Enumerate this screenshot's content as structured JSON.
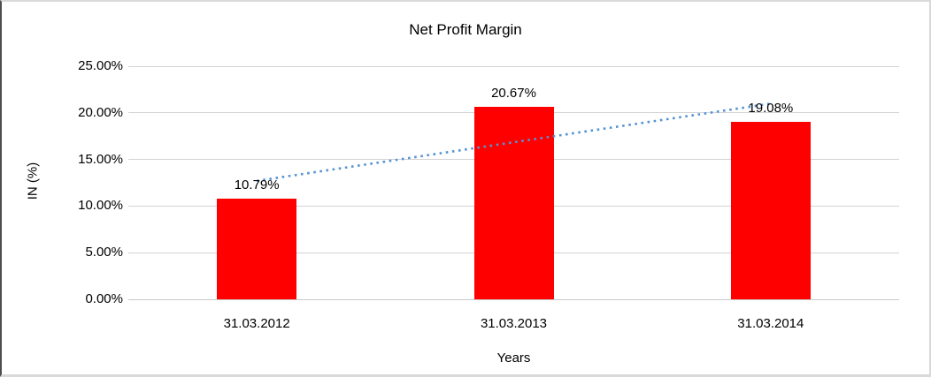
{
  "chart_data": {
    "type": "bar",
    "title": "Net Profit Margin",
    "xlabel": "Years",
    "ylabel": "IN (%)",
    "categories": [
      "31.03.2012",
      "31.03.2013",
      "31.03.2014"
    ],
    "values": [
      10.79,
      20.67,
      19.08
    ],
    "value_labels": [
      "10.79%",
      "20.67%",
      "19.08%"
    ],
    "ylim": [
      0,
      25
    ],
    "ytick_step": 5,
    "ytick_labels": [
      "0.00%",
      "5.00%",
      "10.00%",
      "15.00%",
      "20.00%",
      "25.00%"
    ],
    "grid": true,
    "legend": false,
    "bar_color": "#ff0000",
    "gridline_color": "#d3d3d3",
    "axis_line_color": "#c9c9c9",
    "text_color": "#000000",
    "trendline": {
      "type": "linear",
      "style": "dotted",
      "color": "#5593d4",
      "start_value": 12.7,
      "end_value": 20.99
    }
  }
}
